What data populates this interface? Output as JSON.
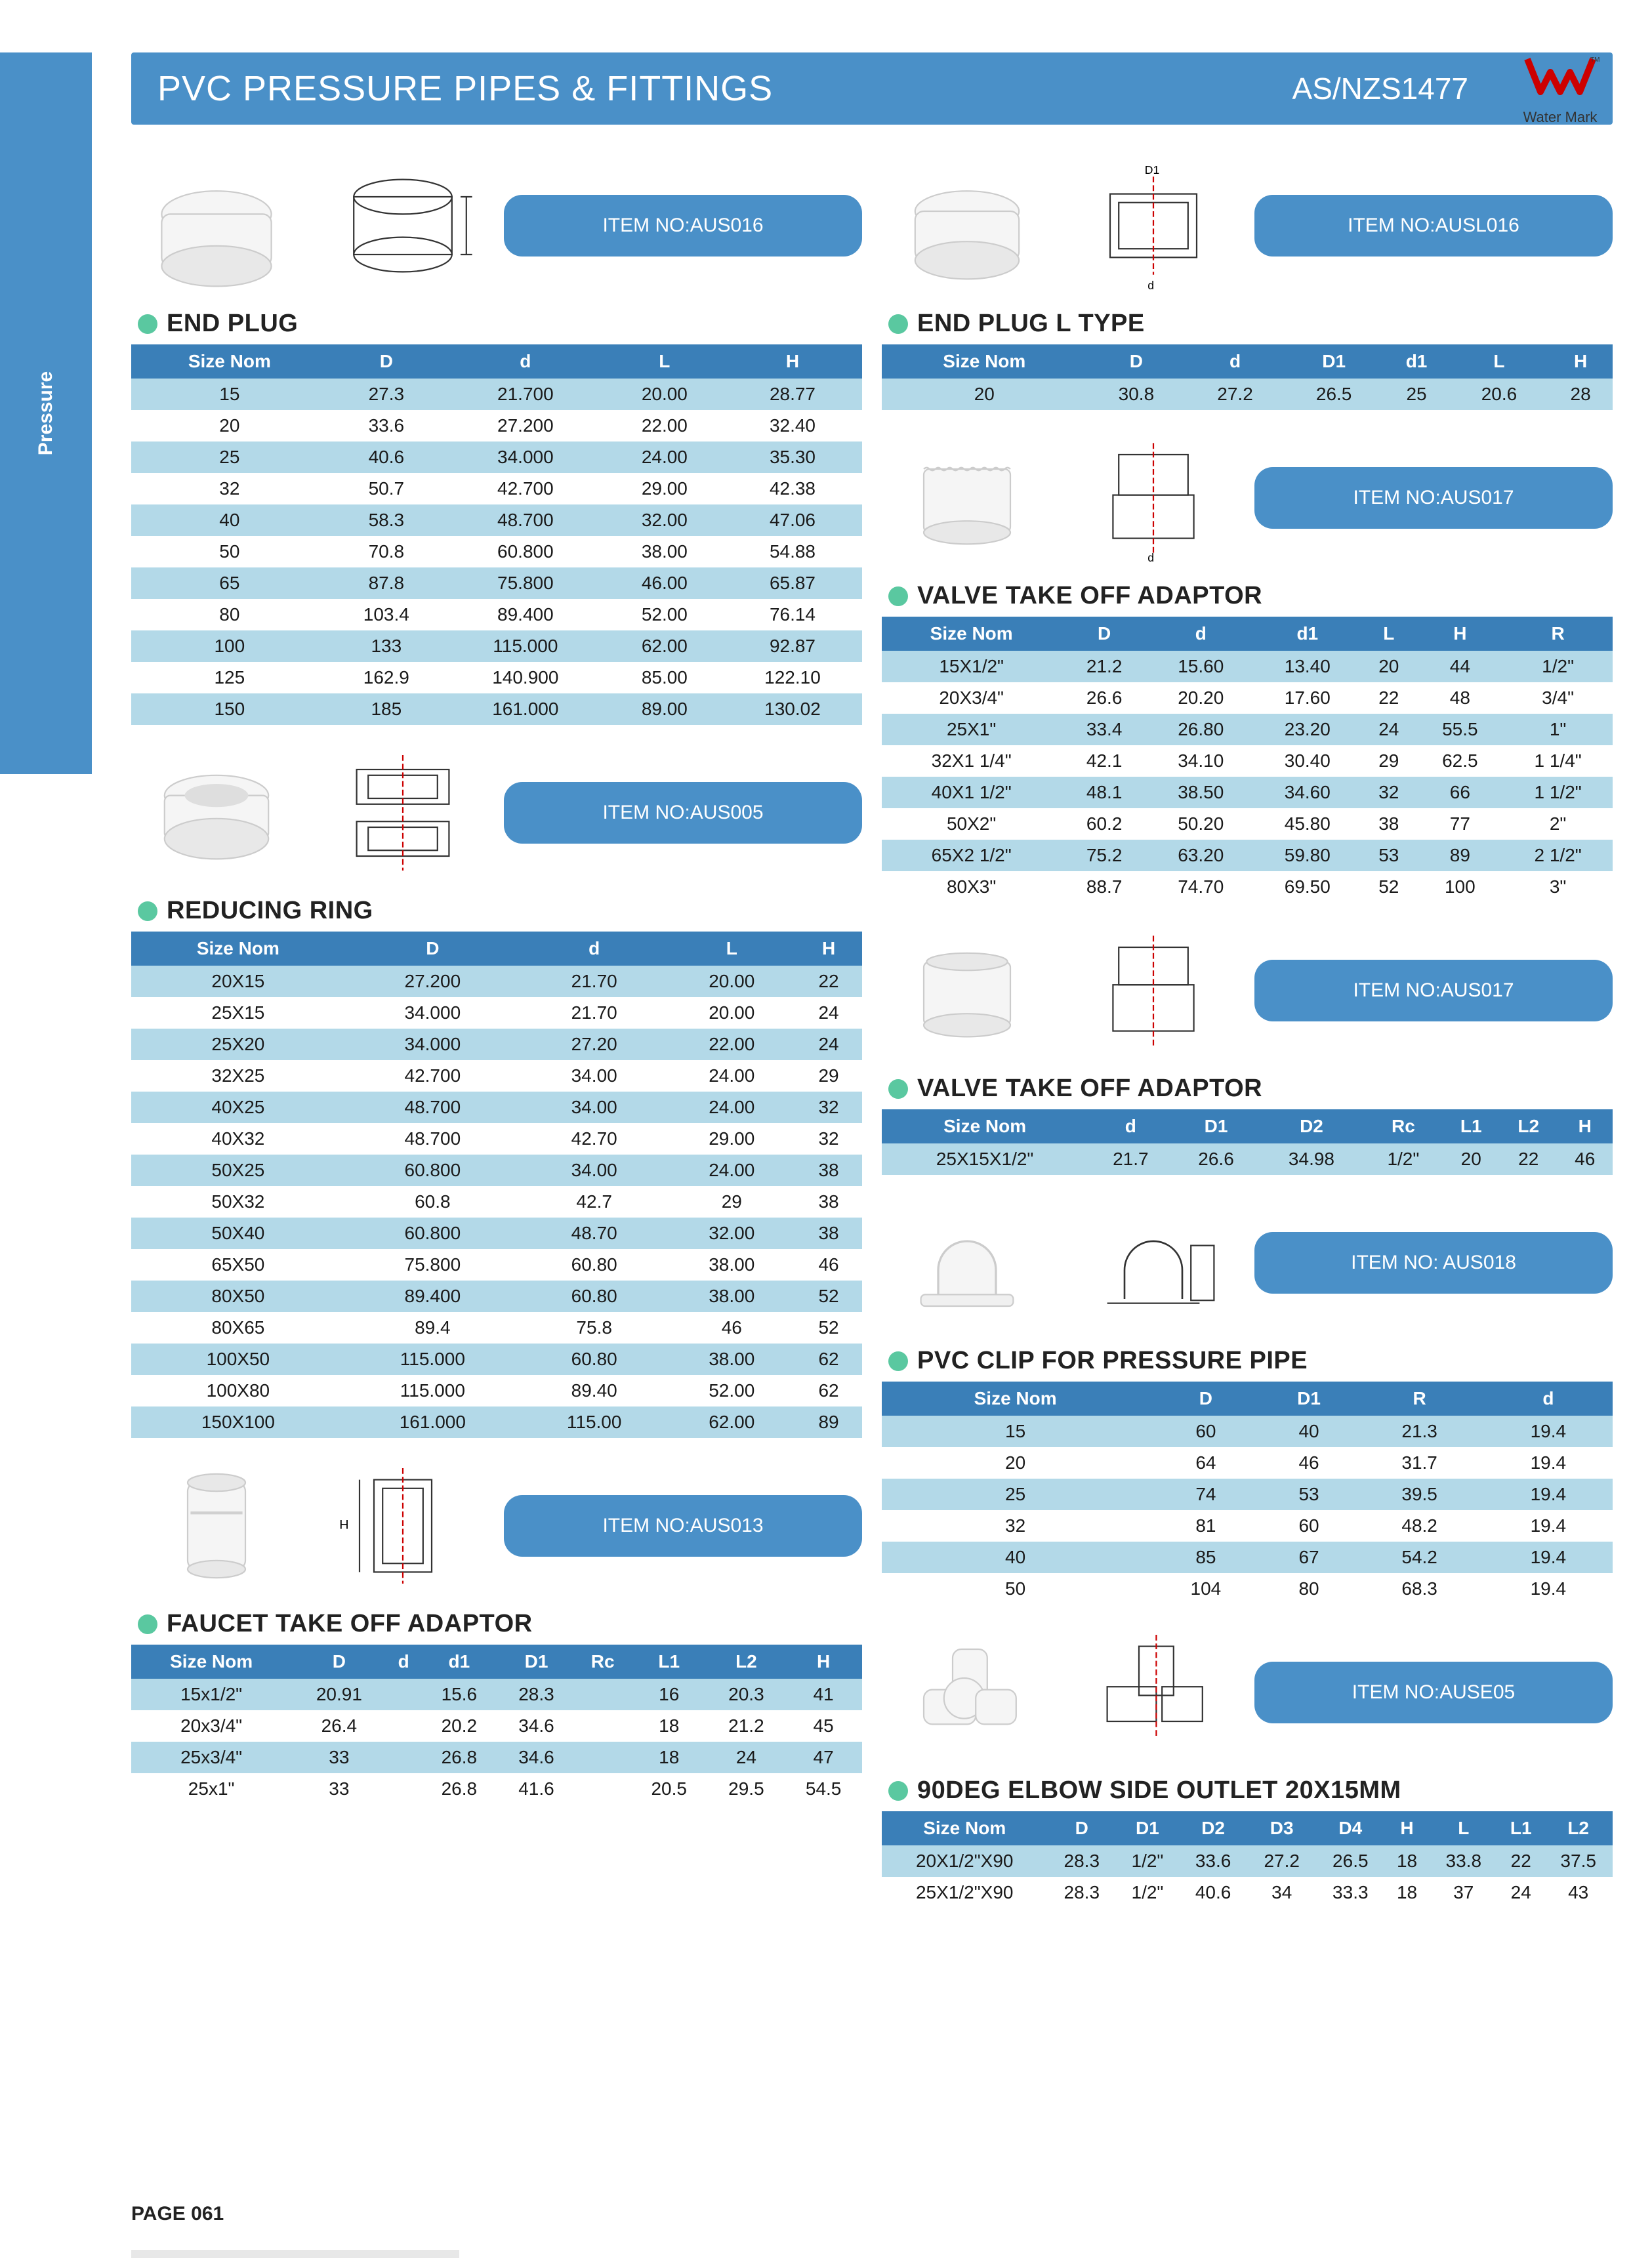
{
  "header": {
    "title": "PVC PRESSURE PIPES & FITTINGS",
    "standard": "AS/NZS1477",
    "watermark_label": "Water Mark"
  },
  "sidebar_label": "Pressure",
  "page_number": "PAGE 061",
  "colors": {
    "brand_blue": "#4a90c8",
    "header_blue": "#3a7fb8",
    "row_blue": "#b3d9e8",
    "green_dot": "#5ac8a0",
    "text": "#1a1a1a",
    "white": "#ffffff",
    "watermark_red": "#cc0000"
  },
  "items": {
    "aus016": "ITEM NO:AUS016",
    "ausl016": "ITEM NO:AUSL016",
    "aus005": "ITEM NO:AUS005",
    "aus017a": "ITEM NO:AUS017",
    "aus017b": "ITEM NO:AUS017",
    "aus013": "ITEM NO:AUS013",
    "aus018": "ITEM NO: AUS018",
    "ause05": "ITEM NO:AUSE05"
  },
  "tables": {
    "end_plug": {
      "title": "END PLUG",
      "columns": [
        "Size Nom",
        "D",
        "d",
        "L",
        "H"
      ],
      "rows": [
        [
          "15",
          "27.3",
          "21.700",
          "20.00",
          "28.77"
        ],
        [
          "20",
          "33.6",
          "27.200",
          "22.00",
          "32.40"
        ],
        [
          "25",
          "40.6",
          "34.000",
          "24.00",
          "35.30"
        ],
        [
          "32",
          "50.7",
          "42.700",
          "29.00",
          "42.38"
        ],
        [
          "40",
          "58.3",
          "48.700",
          "32.00",
          "47.06"
        ],
        [
          "50",
          "70.8",
          "60.800",
          "38.00",
          "54.88"
        ],
        [
          "65",
          "87.8",
          "75.800",
          "46.00",
          "65.87"
        ],
        [
          "80",
          "103.4",
          "89.400",
          "52.00",
          "76.14"
        ],
        [
          "100",
          "133",
          "115.000",
          "62.00",
          "92.87"
        ],
        [
          "125",
          "162.9",
          "140.900",
          "85.00",
          "122.10"
        ],
        [
          "150",
          "185",
          "161.000",
          "89.00",
          "130.02"
        ]
      ]
    },
    "end_plug_l": {
      "title": "END PLUG L TYPE",
      "columns": [
        "Size Nom",
        "D",
        "d",
        "D1",
        "d1",
        "L",
        "H"
      ],
      "rows": [
        [
          "20",
          "30.8",
          "27.2",
          "26.5",
          "25",
          "20.6",
          "28"
        ]
      ]
    },
    "reducing_ring": {
      "title": "REDUCING RING",
      "columns": [
        "Size Nom",
        "D",
        "d",
        "L",
        "H"
      ],
      "rows": [
        [
          "20X15",
          "27.200",
          "21.70",
          "20.00",
          "22"
        ],
        [
          "25X15",
          "34.000",
          "21.70",
          "20.00",
          "24"
        ],
        [
          "25X20",
          "34.000",
          "27.20",
          "22.00",
          "24"
        ],
        [
          "32X25",
          "42.700",
          "34.00",
          "24.00",
          "29"
        ],
        [
          "40X25",
          "48.700",
          "34.00",
          "24.00",
          "32"
        ],
        [
          "40X32",
          "48.700",
          "42.70",
          "29.00",
          "32"
        ],
        [
          "50X25",
          "60.800",
          "34.00",
          "24.00",
          "38"
        ],
        [
          "50X32",
          "60.8",
          "42.7",
          "29",
          "38"
        ],
        [
          "50X40",
          "60.800",
          "48.70",
          "32.00",
          "38"
        ],
        [
          "65X50",
          "75.800",
          "60.80",
          "38.00",
          "46"
        ],
        [
          "80X50",
          "89.400",
          "60.80",
          "38.00",
          "52"
        ],
        [
          "80X65",
          "89.4",
          "75.8",
          "46",
          "52"
        ],
        [
          "100X50",
          "115.000",
          "60.80",
          "38.00",
          "62"
        ],
        [
          "100X80",
          "115.000",
          "89.40",
          "52.00",
          "62"
        ],
        [
          "150X100",
          "161.000",
          "115.00",
          "62.00",
          "89"
        ]
      ]
    },
    "vto_adaptor1": {
      "title": "VALVE TAKE OFF ADAPTOR",
      "columns": [
        "Size Nom",
        "D",
        "d",
        "d1",
        "L",
        "H",
        "R"
      ],
      "rows": [
        [
          "15X1/2\"",
          "21.2",
          "15.60",
          "13.40",
          "20",
          "44",
          "1/2\""
        ],
        [
          "20X3/4\"",
          "26.6",
          "20.20",
          "17.60",
          "22",
          "48",
          "3/4\""
        ],
        [
          "25X1\"",
          "33.4",
          "26.80",
          "23.20",
          "24",
          "55.5",
          "1\""
        ],
        [
          "32X1 1/4\"",
          "42.1",
          "34.10",
          "30.40",
          "29",
          "62.5",
          "1 1/4\""
        ],
        [
          "40X1 1/2\"",
          "48.1",
          "38.50",
          "34.60",
          "32",
          "66",
          "1 1/2\""
        ],
        [
          "50X2\"",
          "60.2",
          "50.20",
          "45.80",
          "38",
          "77",
          "2\""
        ],
        [
          "65X2 1/2\"",
          "75.2",
          "63.20",
          "59.80",
          "53",
          "89",
          "2 1/2\""
        ],
        [
          "80X3\"",
          "88.7",
          "74.70",
          "69.50",
          "52",
          "100",
          "3\""
        ]
      ]
    },
    "vto_adaptor2": {
      "title": "VALVE TAKE OFF ADAPTOR",
      "columns": [
        "Size Nom",
        "d",
        "D1",
        "D2",
        "Rc",
        "L1",
        "L2",
        "H"
      ],
      "rows": [
        [
          "25X15X1/2\"",
          "21.7",
          "26.6",
          "34.98",
          "1/2\"",
          "20",
          "22",
          "46"
        ]
      ]
    },
    "faucet_adaptor": {
      "title": "FAUCET TAKE OFF ADAPTOR",
      "columns": [
        "Size Nom",
        "D",
        "d",
        "d1",
        "D1",
        "Rc",
        "L1",
        "L2",
        "H"
      ],
      "rows": [
        [
          "15x1/2\"",
          "20.91",
          "",
          "15.6",
          "28.3",
          "",
          "16",
          "20.3",
          "41"
        ],
        [
          "20x3/4\"",
          "26.4",
          "",
          "20.2",
          "34.6",
          "",
          "18",
          "21.2",
          "45"
        ],
        [
          "25x3/4\"",
          "33",
          "",
          "26.8",
          "34.6",
          "",
          "18",
          "24",
          "47"
        ],
        [
          "25x1\"",
          "33",
          "",
          "26.8",
          "41.6",
          "",
          "20.5",
          "29.5",
          "54.5"
        ]
      ]
    },
    "pvc_clip": {
      "title": "PVC CLIP FOR PRESSURE PIPE",
      "columns": [
        "Size Nom",
        "D",
        "D1",
        "R",
        "d"
      ],
      "rows": [
        [
          "15",
          "60",
          "40",
          "21.3",
          "19.4"
        ],
        [
          "20",
          "64",
          "46",
          "31.7",
          "19.4"
        ],
        [
          "25",
          "74",
          "53",
          "39.5",
          "19.4"
        ],
        [
          "32",
          "81",
          "60",
          "48.2",
          "19.4"
        ],
        [
          "40",
          "85",
          "67",
          "54.2",
          "19.4"
        ],
        [
          "50",
          "104",
          "80",
          "68.3",
          "19.4"
        ]
      ]
    },
    "elbow_90": {
      "title": "90DEG ELBOW SIDE OUTLET 20X15MM",
      "columns": [
        "Size Nom",
        "D",
        "D1",
        "D2",
        "D3",
        "D4",
        "H",
        "L",
        "L1",
        "L2"
      ],
      "rows": [
        [
          "20X1/2\"X90",
          "28.3",
          "1/2\"",
          "33.6",
          "27.2",
          "26.5",
          "18",
          "33.8",
          "22",
          "37.5"
        ],
        [
          "25X1/2\"X90",
          "28.3",
          "1/2\"",
          "40.6",
          "34",
          "33.3",
          "18",
          "37",
          "24",
          "43"
        ]
      ]
    }
  }
}
